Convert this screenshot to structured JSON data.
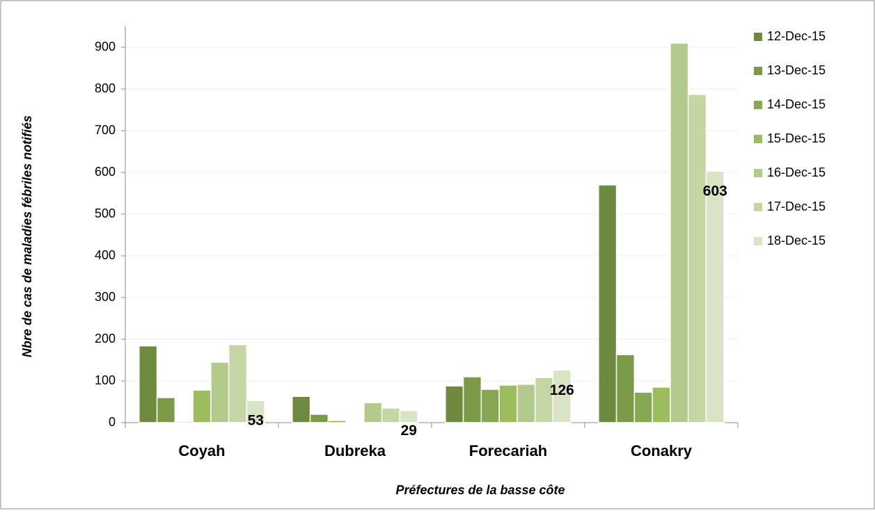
{
  "chart_data": {
    "type": "bar",
    "y_label": "Nbre de cas de maladies fébriles notifiés",
    "x_label": "Préfectures de la basse côte",
    "categories": [
      "Coyah",
      "Dubreka",
      "Forecariah",
      "Conakry"
    ],
    "series": [
      {
        "name": "12-Dec-15",
        "color": "#6e8a3e",
        "values": [
          184,
          63,
          88,
          570
        ]
      },
      {
        "name": "13-Dec-15",
        "color": "#7a9a47",
        "values": [
          60,
          20,
          110,
          163
        ]
      },
      {
        "name": "14-Dec-15",
        "color": "#86a853",
        "values": [
          3,
          5,
          80,
          73
        ]
      },
      {
        "name": "15-Dec-15",
        "color": "#9bbd5e",
        "values": [
          78,
          2,
          90,
          85
        ]
      },
      {
        "name": "16-Dec-15",
        "color": "#b2cb8c",
        "values": [
          145,
          48,
          92,
          910
        ]
      },
      {
        "name": "17-Dec-15",
        "color": "#c3d6a4",
        "values": [
          187,
          35,
          108,
          787
        ]
      },
      {
        "name": "18-Dec-15",
        "color": "#d8e4c3",
        "values": [
          53,
          29,
          126,
          603
        ]
      }
    ],
    "data_labels_series": 6,
    "ylim": [
      0,
      950
    ],
    "yticks": [
      0,
      100,
      200,
      300,
      400,
      500,
      600,
      700,
      800,
      900
    ],
    "grid": true
  }
}
